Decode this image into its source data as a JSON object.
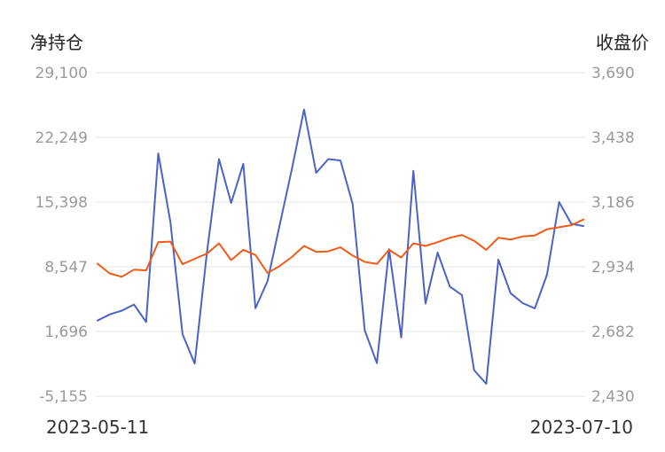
{
  "chart_data": {
    "type": "line",
    "left_axis_title": "净持仓",
    "right_axis_title": "收盘价",
    "left_ticks": [
      "29,100",
      "22,249",
      "15,398",
      "8,547",
      "1,696",
      "-5,155"
    ],
    "right_ticks": [
      "3,690",
      "3,438",
      "3,186",
      "2,934",
      "2,682",
      "2,430"
    ],
    "left_ylim": [
      -5155,
      29100
    ],
    "right_ylim": [
      2430,
      3690
    ],
    "x_start_label": "2023-05-11",
    "x_end_label": "2023-07-10",
    "grid": true,
    "colors": {
      "net_position": "#4a63c4",
      "close_price": "#f25a17"
    },
    "series": [
      {
        "key": "net_position",
        "axis": "left",
        "values": [
          2850,
          3500,
          3900,
          4550,
          2700,
          20550,
          13300,
          1400,
          -1700,
          10000,
          19950,
          15300,
          19450,
          4150,
          7050,
          13000,
          18900,
          25200,
          18500,
          19950,
          19800,
          15200,
          1800,
          -1650,
          10400,
          1050,
          18700,
          4650,
          10050,
          6450,
          5550,
          -2400,
          -3850,
          9300,
          5750,
          4700,
          4150,
          7700,
          15400,
          13100,
          12850
        ]
      },
      {
        "key": "close_price",
        "axis": "right",
        "values": [
          2946,
          2908,
          2895,
          2923,
          2920,
          3030,
          3032,
          2944,
          2965,
          2985,
          3025,
          2960,
          3000,
          2980,
          2910,
          2937,
          2972,
          3015,
          2992,
          2994,
          3010,
          2978,
          2953,
          2945,
          3000,
          2970,
          3025,
          3015,
          3030,
          3047,
          3058,
          3035,
          3000,
          3047,
          3040,
          3052,
          3056,
          3080,
          3088,
          3096,
          3118
        ]
      }
    ]
  }
}
